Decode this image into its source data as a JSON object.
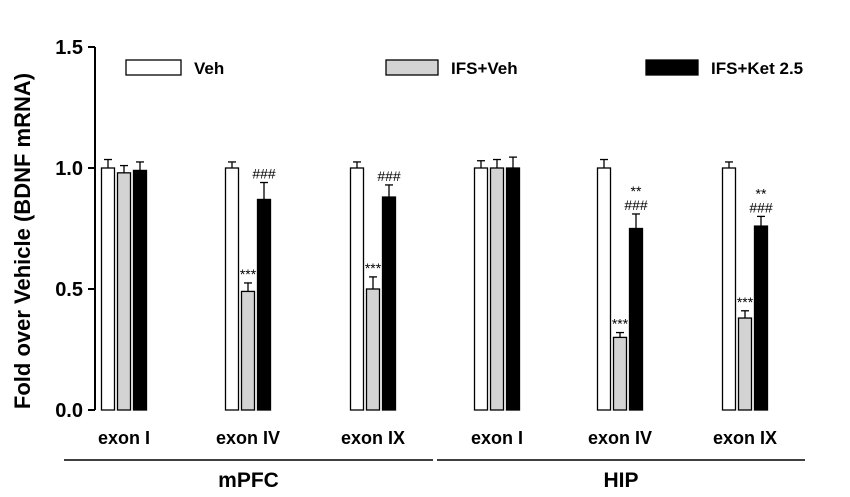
{
  "chart_data": {
    "type": "bar",
    "ylabel": "Fold over Vehicle (BDNF mRNA)",
    "ylim": [
      0,
      1.5
    ],
    "yticks": [
      "0.0",
      "0.5",
      "1.0",
      "1.5"
    ],
    "grid": false,
    "legend_position": "top",
    "categories": [
      "exon I",
      "exon IV",
      "exon IX",
      "exon I",
      "exon IV",
      "exon IX"
    ],
    "groups": [
      {
        "label": "mPFC",
        "categories": [
          0,
          1,
          2
        ]
      },
      {
        "label": "HIP",
        "categories": [
          3,
          4,
          5
        ]
      }
    ],
    "series": [
      {
        "name": "Veh",
        "color": "#ffffff",
        "values": [
          1.0,
          1.0,
          1.0,
          1.0,
          1.0,
          1.0
        ],
        "errors": [
          0.035,
          0.025,
          0.025,
          0.03,
          0.035,
          0.025
        ],
        "annotations": [
          "",
          "",
          "",
          "",
          "",
          ""
        ]
      },
      {
        "name": "IFS+Veh",
        "color": "#d3d3d3",
        "values": [
          0.98,
          0.49,
          0.5,
          1.0,
          0.3,
          0.38
        ],
        "errors": [
          0.03,
          0.035,
          0.05,
          0.035,
          0.02,
          0.03
        ],
        "annotations": [
          "",
          "***",
          "***",
          "",
          "***",
          "***"
        ]
      },
      {
        "name": "IFS+Ket 2.5",
        "color": "#000000",
        "values": [
          0.99,
          0.87,
          0.88,
          1.0,
          0.75,
          0.76
        ],
        "errors": [
          0.035,
          0.07,
          0.05,
          0.045,
          0.06,
          0.04
        ],
        "annotations": [
          "",
          "###",
          "###",
          "",
          "**\n###",
          "**\n###"
        ]
      }
    ]
  }
}
